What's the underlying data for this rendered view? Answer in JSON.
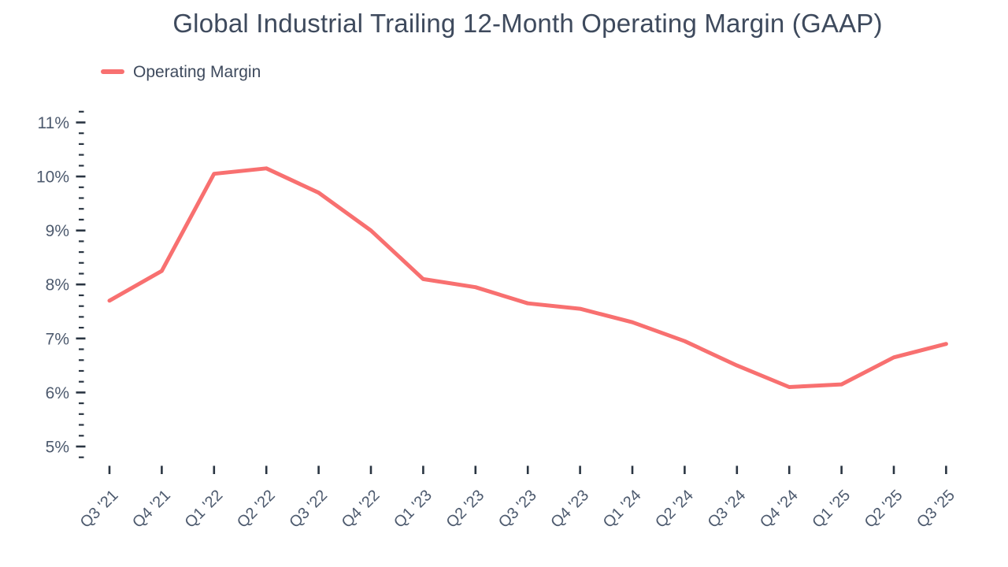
{
  "title": "Global Industrial Trailing 12-Month Operating Margin (GAAP)",
  "legend": {
    "items": [
      {
        "label": "Operating Margin",
        "color": "#F87070"
      }
    ]
  },
  "colors": {
    "line": "#F87070",
    "title_text": "#3E4A5D",
    "axis_label": "#4D5A6E",
    "tick": "#2A3542",
    "background": "#FFFFFF"
  },
  "chart_data": {
    "type": "line",
    "title": "Global Industrial Trailing 12-Month Operating Margin (GAAP)",
    "categories": [
      "Q3 '21",
      "Q4 '21",
      "Q1 '22",
      "Q2 '22",
      "Q3 '22",
      "Q4 '22",
      "Q1 '23",
      "Q2 '23",
      "Q3 '23",
      "Q4 '23",
      "Q1 '24",
      "Q2 '24",
      "Q3 '24",
      "Q4 '24",
      "Q1 '25",
      "Q2 '25",
      "Q3 '25"
    ],
    "series": [
      {
        "name": "Operating Margin",
        "color": "#F87070",
        "values": [
          7.7,
          8.25,
          10.05,
          10.15,
          9.7,
          9.0,
          8.1,
          7.95,
          7.65,
          7.55,
          7.3,
          6.95,
          6.5,
          6.1,
          6.15,
          6.65,
          6.9
        ]
      }
    ],
    "xlabel": "",
    "ylabel": "",
    "y_tick_suffix": "%",
    "y_major_ticks": [
      5,
      6,
      7,
      8,
      9,
      10,
      11
    ],
    "y_minor_step": 0.2,
    "ylim": [
      4.8,
      11.2
    ],
    "grid": false,
    "legend_position": "top-left"
  }
}
